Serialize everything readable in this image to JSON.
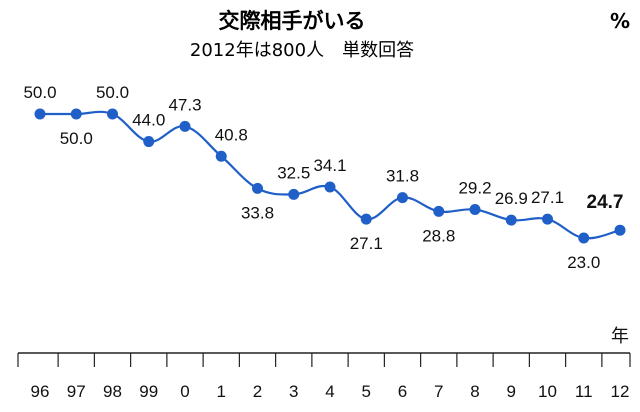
{
  "chart_data": {
    "type": "line",
    "title": "交際相手がいる",
    "subtitle": "2012年は800人　単数回答",
    "y_unit": "%",
    "x_unit": "年",
    "categories": [
      "96",
      "97",
      "98",
      "99",
      "0",
      "1",
      "2",
      "3",
      "4",
      "5",
      "6",
      "7",
      "8",
      "9",
      "10",
      "11",
      "12"
    ],
    "series": [
      {
        "values": [
          50.0,
          50.0,
          50.0,
          44.0,
          47.3,
          40.8,
          33.8,
          32.5,
          34.1,
          27.1,
          31.8,
          28.8,
          29.2,
          26.9,
          27.1,
          23.0,
          24.7
        ],
        "labels": [
          "50.0",
          "50.0",
          "50.0",
          "44.0",
          "47.3",
          "40.8",
          "33.8",
          "32.5",
          "34.1",
          "27.1",
          "31.8",
          "28.8",
          "29.2",
          "26.9",
          "27.1",
          "23.0",
          "24.7"
        ]
      }
    ],
    "highlight_last": true,
    "grid": false,
    "legend": "none",
    "colors": {
      "line": "#1f5fc7",
      "marker": "#1f5fc7",
      "highlight_label": "#f07a1a",
      "axis": "#222222"
    }
  }
}
